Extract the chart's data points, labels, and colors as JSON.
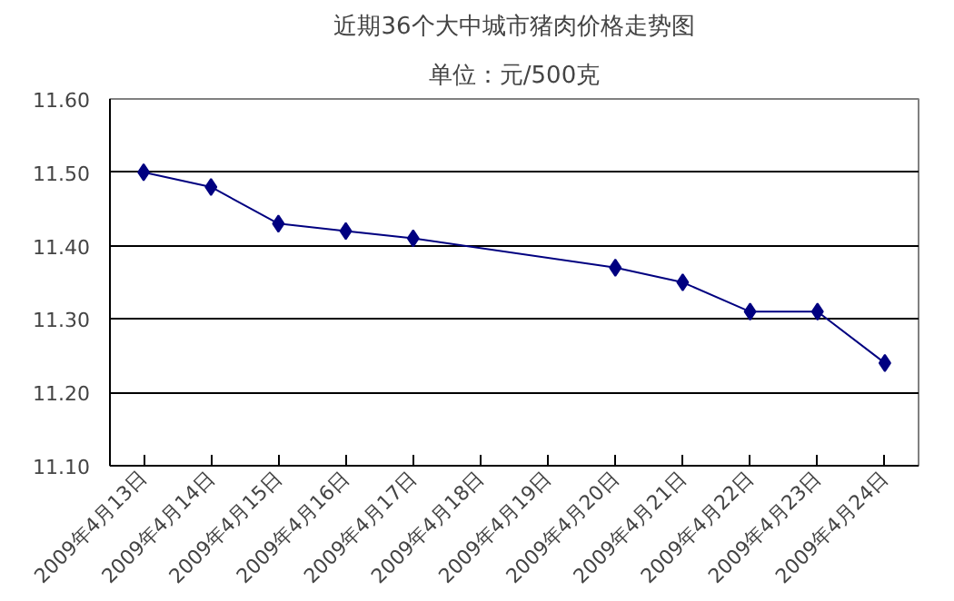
{
  "chart_data": {
    "type": "line",
    "title": "近期36个大中城市猪肉价格走势图",
    "subtitle": "单位：元/500克",
    "categories": [
      "2009年4月13日",
      "2009年4月14日",
      "2009年4月15日",
      "2009年4月16日",
      "2009年4月17日",
      "2009年4月18日",
      "2009年4月19日",
      "2009年4月20日",
      "2009年4月21日",
      "2009年4月22日",
      "2009年4月23日",
      "2009年4月24日"
    ],
    "series": [
      {
        "color": "#000080",
        "values": [
          11.5,
          11.48,
          11.43,
          11.42,
          11.41,
          null,
          null,
          11.37,
          11.35,
          11.31,
          11.31,
          11.24
        ]
      }
    ],
    "ylim": [
      11.1,
      11.6
    ],
    "yticks": [
      {
        "value": 11.1,
        "label": "11.10"
      },
      {
        "value": 11.2,
        "label": "11.20"
      },
      {
        "value": 11.3,
        "label": "11.30"
      },
      {
        "value": 11.4,
        "label": "11.40"
      },
      {
        "value": 11.5,
        "label": "11.50"
      },
      {
        "value": 11.6,
        "label": "11.60"
      }
    ],
    "grid": "y",
    "marker": "diamond",
    "line_style": "solid"
  }
}
